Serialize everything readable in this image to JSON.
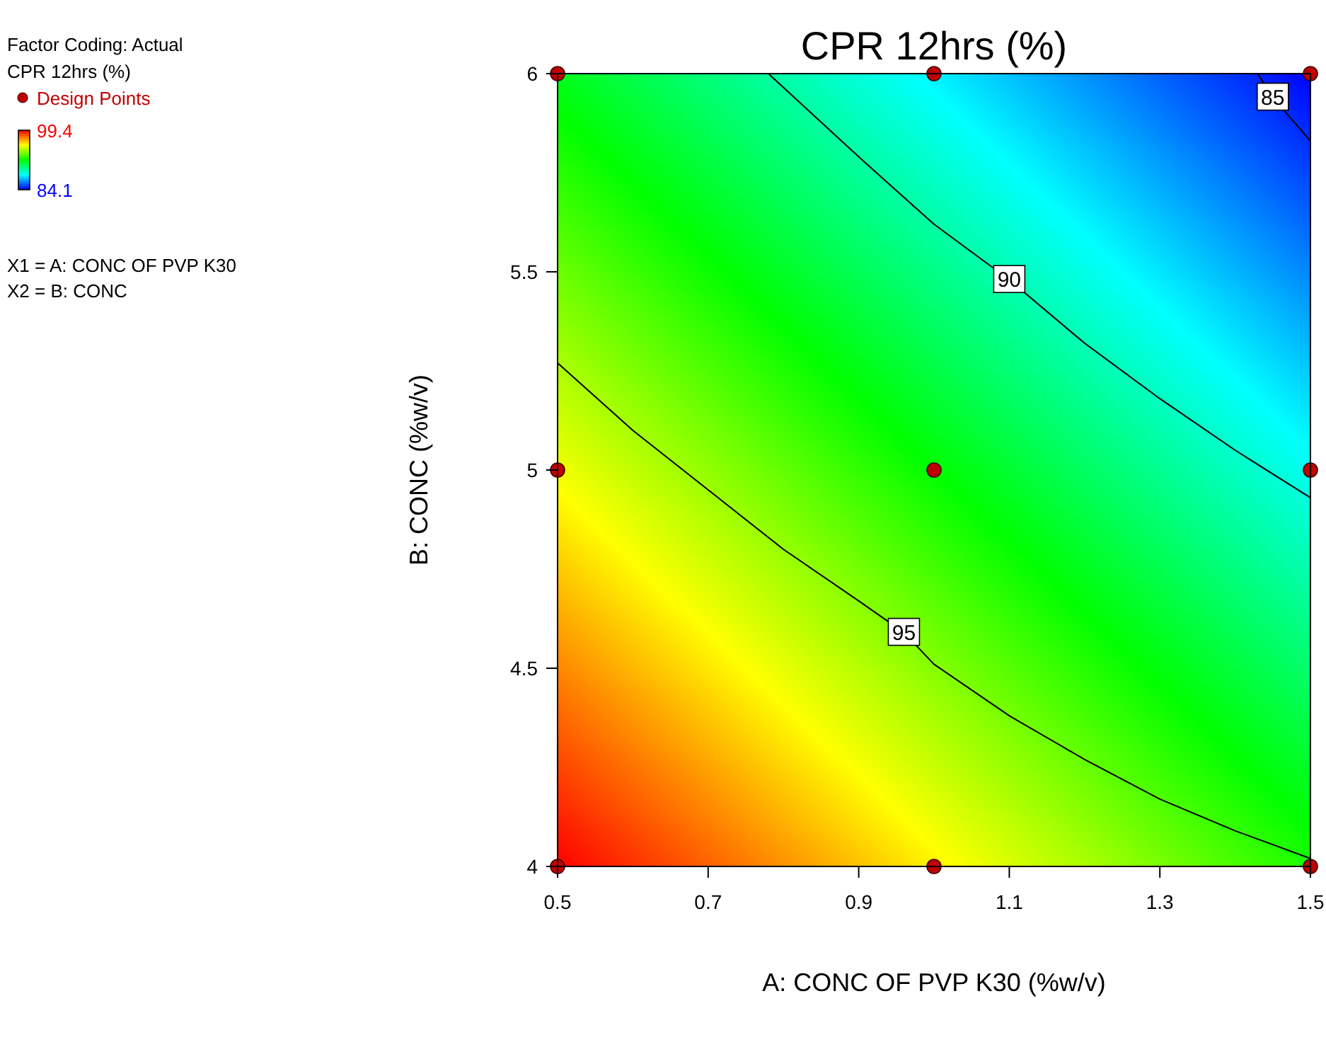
{
  "chart_data": {
    "type": "scatter",
    "title": "CPR 12hrs (%)",
    "xlabel": "A: CONC OF PVP K30 (%w/v)",
    "ylabel": "B: CONC (%w/v)",
    "clabel": "CPR 12hrs (%)",
    "clim": [
      84.1,
      99.4
    ],
    "cticks": [
      84.1,
      99.4
    ],
    "xlim": [
      0.5,
      1.5
    ],
    "xticks": [
      0.5,
      0.7,
      0.9,
      1.1,
      1.3,
      1.5
    ],
    "ylim": [
      4,
      6
    ],
    "yticks": [
      4,
      4.5,
      5,
      5.5,
      6
    ],
    "series": [
      {
        "type": "line",
        "color": "#000000",
        "x": [
          0.5,
          0.6,
          0.7,
          0.8,
          0.9,
          0.96,
          1.0,
          1.1,
          1.2,
          1.3,
          1.4,
          1.5
        ],
        "values": [
          5.27,
          5.1,
          4.95,
          4.8,
          4.67,
          4.59,
          4.51,
          4.38,
          4.27,
          4.17,
          4.09,
          4.02
        ]
      },
      {
        "type": "line",
        "color": "#000000",
        "x": [
          0.78,
          0.9,
          1.0,
          1.1,
          1.2,
          1.3,
          1.4,
          1.5
        ],
        "values": [
          6,
          5.79,
          5.62,
          5.48,
          5.32,
          5.18,
          5.05,
          4.93
        ]
      },
      {
        "type": "line",
        "color": "#000000",
        "x": [
          1.43,
          1.45,
          1.5
        ],
        "values": [
          6,
          5.94,
          5.83
        ]
      },
      {
        "type": "scatter",
        "name": "Design Points",
        "color": "#c00000",
        "marker": "circle",
        "x": [
          0.5,
          1,
          1.5,
          0.5,
          1,
          1.5,
          0.5,
          1,
          1.5
        ],
        "values": [
          6,
          6,
          6,
          5,
          5,
          5,
          4,
          4,
          4
        ]
      }
    ],
    "annotations": [
      "Factor Coding: Actual",
      "X1 = A: CONC OF PVP K30",
      "X2 = B: CONC",
      {
        "text": "95",
        "x": 0.96,
        "y": 4.59
      },
      {
        "text": "90",
        "x": 1.1,
        "y": 5.48
      },
      {
        "text": "85",
        "x": 1.45,
        "y": 5.94
      }
    ],
    "legend": "top left"
  }
}
